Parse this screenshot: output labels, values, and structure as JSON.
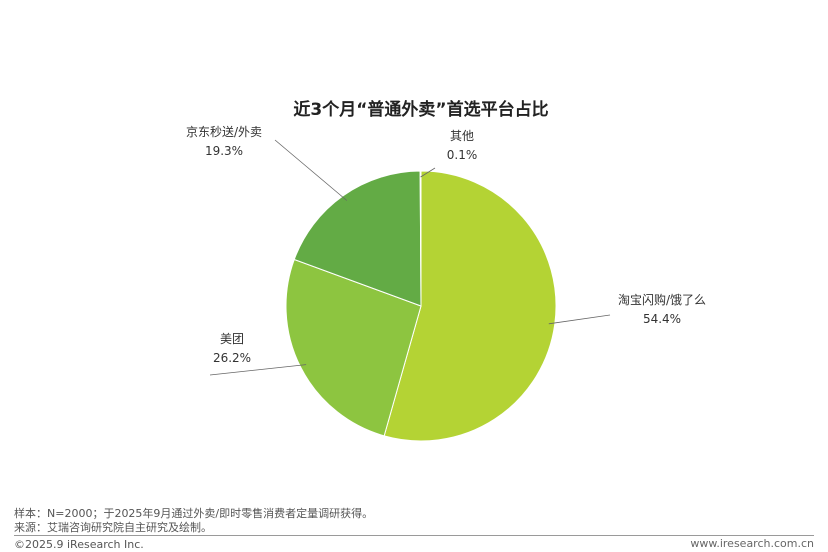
{
  "chart_data": {
    "type": "pie",
    "title": "近3个月“普通外卖”首选平台占比",
    "slices": [
      {
        "label": "淘宝闪购/饿了么",
        "value": 54.4,
        "value_label": "54.4%",
        "color": "#b4d334"
      },
      {
        "label": "美团",
        "value": 26.2,
        "value_label": "26.2%",
        "color": "#8dc540"
      },
      {
        "label": "京东秒送/外卖",
        "value": 19.3,
        "value_label": "19.3%",
        "color": "#63ab45"
      },
      {
        "label": "其他",
        "value": 0.1,
        "value_label": "0.1%",
        "color": "#3f8f3c"
      }
    ],
    "start": "top",
    "direction": "clockwise"
  },
  "footer": {
    "sample_note": "样本：N=2000；于2025年9月通过外卖/即时零售消费者定量调研获得。",
    "source_note": "来源：艾瑞咨询研究院自主研究及绘制。",
    "copyright": "©2025.9 iResearch Inc.",
    "website": "www.iresearch.com.cn"
  }
}
